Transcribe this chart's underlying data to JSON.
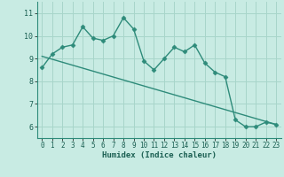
{
  "xlabel": "Humidex (Indice chaleur)",
  "line1_x": [
    0,
    1,
    2,
    3,
    4,
    5,
    6,
    7,
    8,
    9,
    10,
    11,
    12,
    13,
    14,
    15,
    16,
    17,
    18,
    19,
    20,
    21,
    22,
    23
  ],
  "line1_y": [
    8.6,
    9.2,
    9.5,
    9.6,
    10.4,
    9.9,
    9.8,
    10.0,
    10.8,
    10.3,
    8.9,
    8.5,
    9.0,
    9.5,
    9.3,
    9.6,
    8.8,
    8.4,
    8.2,
    6.3,
    6.0,
    6.0,
    6.2,
    6.1
  ],
  "line2_x": [
    0,
    23
  ],
  "line2_y": [
    9.1,
    6.1
  ],
  "line_color": "#2e8b7a",
  "bg_color": "#c8ebe3",
  "grid_color": "#a8d5ca",
  "ylim": [
    5.5,
    11.5
  ],
  "xlim": [
    -0.5,
    23.5
  ],
  "yticks": [
    6,
    7,
    8,
    9,
    10,
    11
  ],
  "xticks": [
    0,
    1,
    2,
    3,
    4,
    5,
    6,
    7,
    8,
    9,
    10,
    11,
    12,
    13,
    14,
    15,
    16,
    17,
    18,
    19,
    20,
    21,
    22,
    23
  ]
}
